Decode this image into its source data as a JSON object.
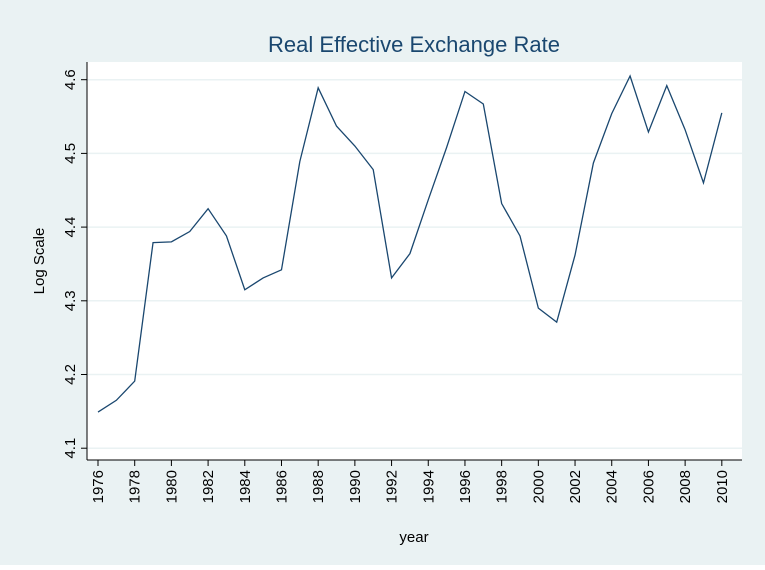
{
  "chart_data": {
    "type": "line",
    "title": "Real Effective Exchange Rate",
    "x_label": "year",
    "y_label": "Log Scale",
    "x": [
      1976,
      1977,
      1978,
      1979,
      1980,
      1981,
      1982,
      1983,
      1984,
      1985,
      1986,
      1987,
      1988,
      1989,
      1990,
      1991,
      1992,
      1993,
      1994,
      1995,
      1996,
      1997,
      1998,
      1999,
      2000,
      2001,
      2002,
      2003,
      2004,
      2005,
      2006,
      2007,
      2008,
      2009,
      2010
    ],
    "series": [
      {
        "name": "Real Effective Exchange Rate",
        "color": "#1a476f",
        "values": [
          4.149,
          4.165,
          4.191,
          4.379,
          4.38,
          4.394,
          4.425,
          4.388,
          4.315,
          4.331,
          4.342,
          4.489,
          4.589,
          4.537,
          4.51,
          4.478,
          4.331,
          4.364,
          4.437,
          4.508,
          4.584,
          4.567,
          4.432,
          4.388,
          4.29,
          4.271,
          4.362,
          4.487,
          4.554,
          4.605,
          4.529,
          4.592,
          4.532,
          4.46,
          4.555
        ]
      }
    ],
    "xlim": [
      1975.4,
      2011.1
    ],
    "ylim": [
      4.084,
      4.624
    ],
    "xticks": [
      1976,
      1978,
      1980,
      1982,
      1984,
      1986,
      1988,
      1990,
      1992,
      1994,
      1996,
      1998,
      2000,
      2002,
      2004,
      2006,
      2008,
      2010
    ],
    "yticks": [
      4.1,
      4.2,
      4.3,
      4.4,
      4.5,
      4.6
    ],
    "grid": true
  }
}
